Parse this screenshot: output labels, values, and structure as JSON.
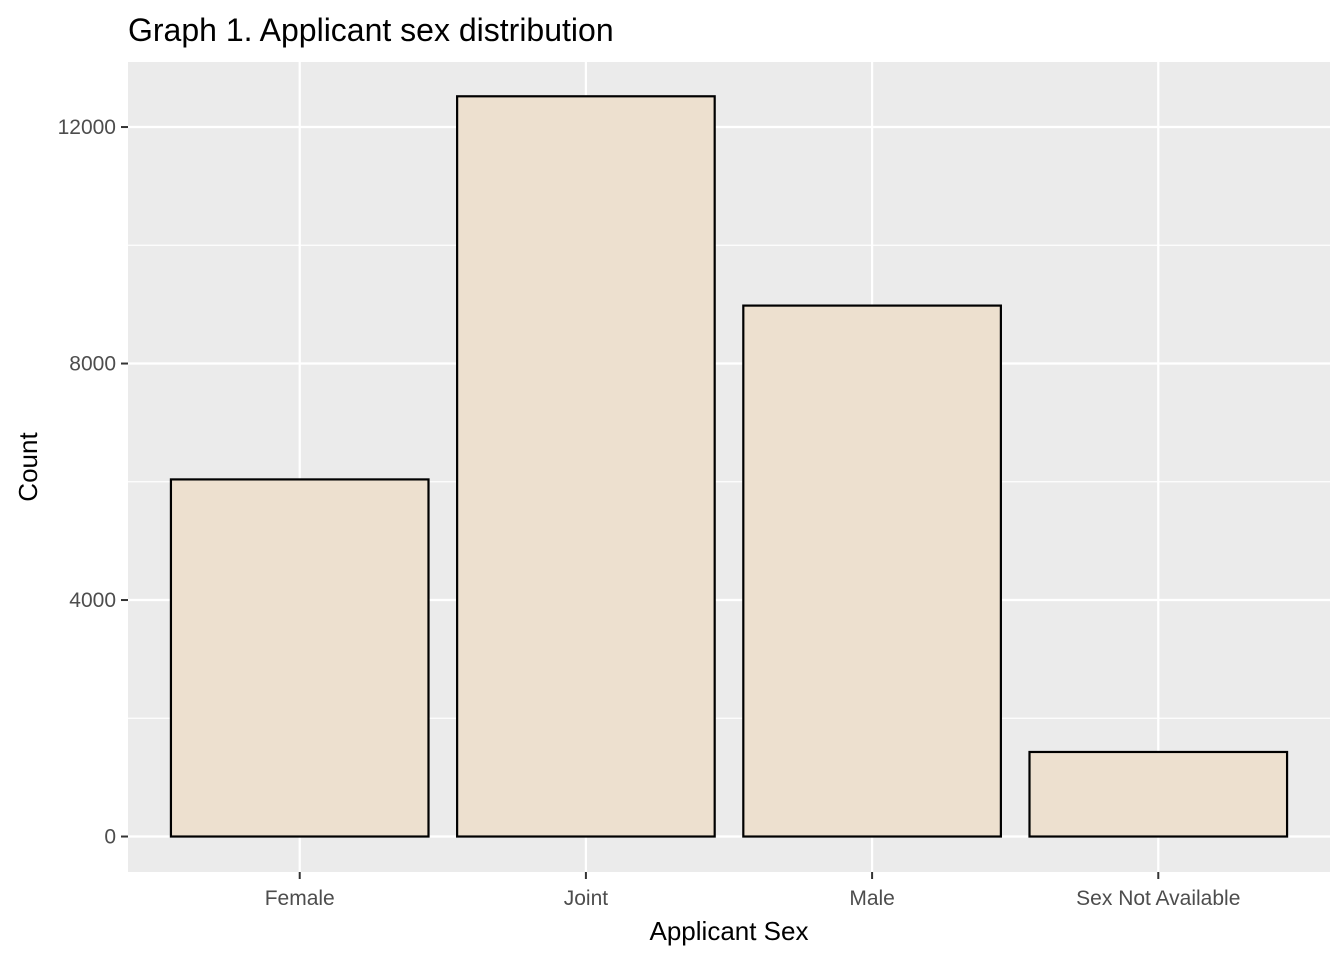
{
  "chart_data": {
    "type": "bar",
    "title": "Graph 1. Applicant sex distribution",
    "xlabel": "Applicant Sex",
    "ylabel": "Count",
    "categories": [
      "Female",
      "Joint",
      "Male",
      "Sex Not Available"
    ],
    "values": [
      6040,
      12520,
      8980,
      1430
    ],
    "ylim": [
      -600,
      13100
    ],
    "yticks": [
      0,
      4000,
      8000,
      12000
    ],
    "ytick_labels": [
      "0",
      "4000",
      "8000",
      "12000"
    ],
    "grid": true,
    "legend": "none",
    "colors": {
      "panel_background": "#ebebeb",
      "grid": "#ffffff",
      "bar_fill": "#ede0cf",
      "bar_stroke": "#000000",
      "tick": "#333333"
    }
  }
}
